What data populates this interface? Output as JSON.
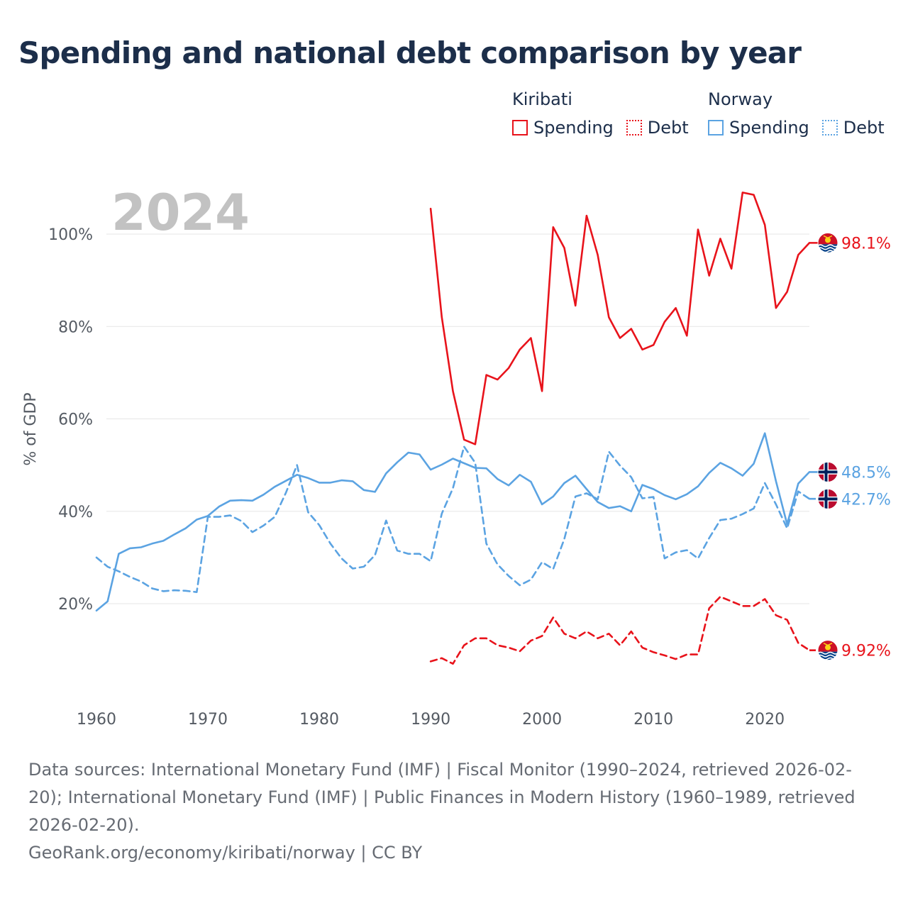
{
  "title": "Spending and national debt comparison by year",
  "legend": {
    "groups": [
      {
        "country": "Kiribati",
        "color": "#e8131b",
        "spending_label": "Spending",
        "debt_label": "Debt"
      },
      {
        "country": "Norway",
        "color": "#5ba3e2",
        "spending_label": "Spending",
        "debt_label": "Debt"
      }
    ]
  },
  "footer": {
    "sources": "Data sources: International Monetary Fund (IMF) | Fiscal Monitor (1990–2024, retrieved 2026-02-20); International Monetary Fund (IMF) | Public Finances in Modern History (1960–1989, retrieved 2026-02-20).",
    "attribution": "GeoRank.org/economy/kiribati/norway | CC BY"
  },
  "chart_data": {
    "type": "line",
    "year_watermark": "2024",
    "ylabel": "% of GDP",
    "xlabel": "",
    "xlim": [
      1960,
      2024
    ],
    "ylim": [
      0,
      110
    ],
    "x_ticks": [
      1960,
      1970,
      1980,
      1990,
      2000,
      2010,
      2020
    ],
    "y_ticks": [
      20,
      40,
      60,
      80,
      100
    ],
    "y_tick_labels": [
      "20%",
      "40%",
      "60%",
      "80%",
      "100%"
    ],
    "end_labels": [
      "98.1%",
      "48.5%",
      "42.7%",
      "9.92%"
    ],
    "series": [
      {
        "name": "Kiribati Spending",
        "country": "Kiribati",
        "color": "#e8131b",
        "dash": false,
        "end_label": "98.1%",
        "flag": "kiribati",
        "x": [
          1990,
          1991,
          1992,
          1993,
          1994,
          1995,
          1996,
          1997,
          1998,
          1999,
          2000,
          2001,
          2002,
          2003,
          2004,
          2005,
          2006,
          2007,
          2008,
          2009,
          2010,
          2011,
          2012,
          2013,
          2014,
          2015,
          2016,
          2017,
          2018,
          2019,
          2020,
          2021,
          2022,
          2023,
          2024
        ],
        "values": [
          105.5,
          82,
          66,
          55.5,
          54.5,
          69.5,
          68.5,
          71,
          75,
          77.5,
          66,
          101.5,
          97,
          84.5,
          104,
          95.5,
          82,
          77.5,
          79.5,
          75,
          76,
          81,
          84,
          78,
          101,
          91,
          99,
          92.5,
          109,
          108.5,
          102,
          84,
          87.5,
          95.5,
          98.1
        ]
      },
      {
        "name": "Kiribati Debt",
        "country": "Kiribati",
        "color": "#e8131b",
        "dash": true,
        "end_label": "9.92%",
        "flag": "kiribati",
        "x": [
          1990,
          1991,
          1992,
          1993,
          1994,
          1995,
          1996,
          1997,
          1998,
          1999,
          2000,
          2001,
          2002,
          2003,
          2004,
          2005,
          2006,
          2007,
          2008,
          2009,
          2010,
          2011,
          2012,
          2013,
          2014,
          2015,
          2016,
          2017,
          2018,
          2019,
          2020,
          2021,
          2022,
          2023,
          2024
        ],
        "values": [
          7.5,
          8.2,
          7,
          11,
          12.5,
          12.5,
          11,
          10.5,
          9.7,
          12,
          13,
          17,
          13.5,
          12.5,
          14,
          12.5,
          13.5,
          11,
          14,
          10.5,
          9.5,
          8.8,
          8,
          9,
          9,
          19,
          21.5,
          20.5,
          19.5,
          19.5,
          21,
          17.5,
          16.5,
          11.5,
          9.92
        ]
      },
      {
        "name": "Norway Spending",
        "country": "Norway",
        "color": "#5ba3e2",
        "dash": false,
        "end_label": "48.5%",
        "flag": "norway",
        "x": [
          1960,
          1961,
          1962,
          1963,
          1964,
          1965,
          1966,
          1967,
          1968,
          1969,
          1970,
          1971,
          1972,
          1973,
          1974,
          1975,
          1976,
          1977,
          1978,
          1979,
          1980,
          1981,
          1982,
          1983,
          1984,
          1985,
          1986,
          1987,
          1988,
          1989,
          1990,
          1991,
          1992,
          1993,
          1994,
          1995,
          1996,
          1997,
          1998,
          1999,
          2000,
          2001,
          2002,
          2003,
          2004,
          2005,
          2006,
          2007,
          2008,
          2009,
          2010,
          2011,
          2012,
          2013,
          2014,
          2015,
          2016,
          2017,
          2018,
          2019,
          2020,
          2021,
          2022,
          2023,
          2024
        ],
        "values": [
          18.5,
          20.5,
          30.8,
          32,
          32.2,
          33,
          33.6,
          35,
          36.3,
          38.2,
          39,
          41,
          42.3,
          42.4,
          42.3,
          43.6,
          45.3,
          46.6,
          47.9,
          47.2,
          46.2,
          46.2,
          46.7,
          46.5,
          44.6,
          44.2,
          48.2,
          50.6,
          52.7,
          52.3,
          49,
          50.1,
          51.4,
          50.4,
          49.4,
          49.3,
          47,
          45.6,
          47.9,
          46.4,
          41.5,
          43.2,
          46.1,
          47.7,
          44.8,
          42,
          40.7,
          41.1,
          40,
          45.7,
          44.8,
          43.5,
          42.6,
          43.7,
          45.4,
          48.3,
          50.5,
          49.3,
          47.7,
          50.3,
          56.9,
          46.5,
          37.2,
          46,
          48.5
        ]
      },
      {
        "name": "Norway Debt",
        "country": "Norway",
        "color": "#5ba3e2",
        "dash": true,
        "end_label": "42.7%",
        "flag": "norway",
        "x": [
          1960,
          1961,
          1962,
          1963,
          1964,
          1965,
          1966,
          1967,
          1968,
          1969,
          1970,
          1971,
          1972,
          1973,
          1974,
          1975,
          1976,
          1977,
          1978,
          1979,
          1980,
          1981,
          1982,
          1983,
          1984,
          1985,
          1986,
          1987,
          1988,
          1989,
          1990,
          1991,
          1992,
          1993,
          1994,
          1995,
          1996,
          1997,
          1998,
          1999,
          2000,
          2001,
          2002,
          2003,
          2004,
          2005,
          2006,
          2007,
          2008,
          2009,
          2010,
          2011,
          2012,
          2013,
          2014,
          2015,
          2016,
          2017,
          2018,
          2019,
          2020,
          2021,
          2022,
          2023,
          2024
        ],
        "values": [
          30,
          28,
          27,
          25.8,
          24.8,
          23.3,
          22.7,
          22.9,
          22.8,
          22.5,
          38.8,
          38.8,
          39.1,
          37.9,
          35.5,
          36.9,
          38.8,
          44,
          50,
          39.8,
          37,
          33,
          29.8,
          27.6,
          28,
          30.5,
          38,
          31.5,
          30.8,
          30.8,
          29.2,
          39.5,
          45,
          54,
          50.5,
          33,
          28.5,
          26,
          24,
          25.2,
          29,
          27.5,
          34,
          43.2,
          43.9,
          42.6,
          52.9,
          49.9,
          47.4,
          42.8,
          43.1,
          29.8,
          31.1,
          31.6,
          29.8,
          34.2,
          38.1,
          38.4,
          39.4,
          40.6,
          46.1,
          41.5,
          36.3,
          44.3,
          42.7
        ]
      }
    ]
  }
}
